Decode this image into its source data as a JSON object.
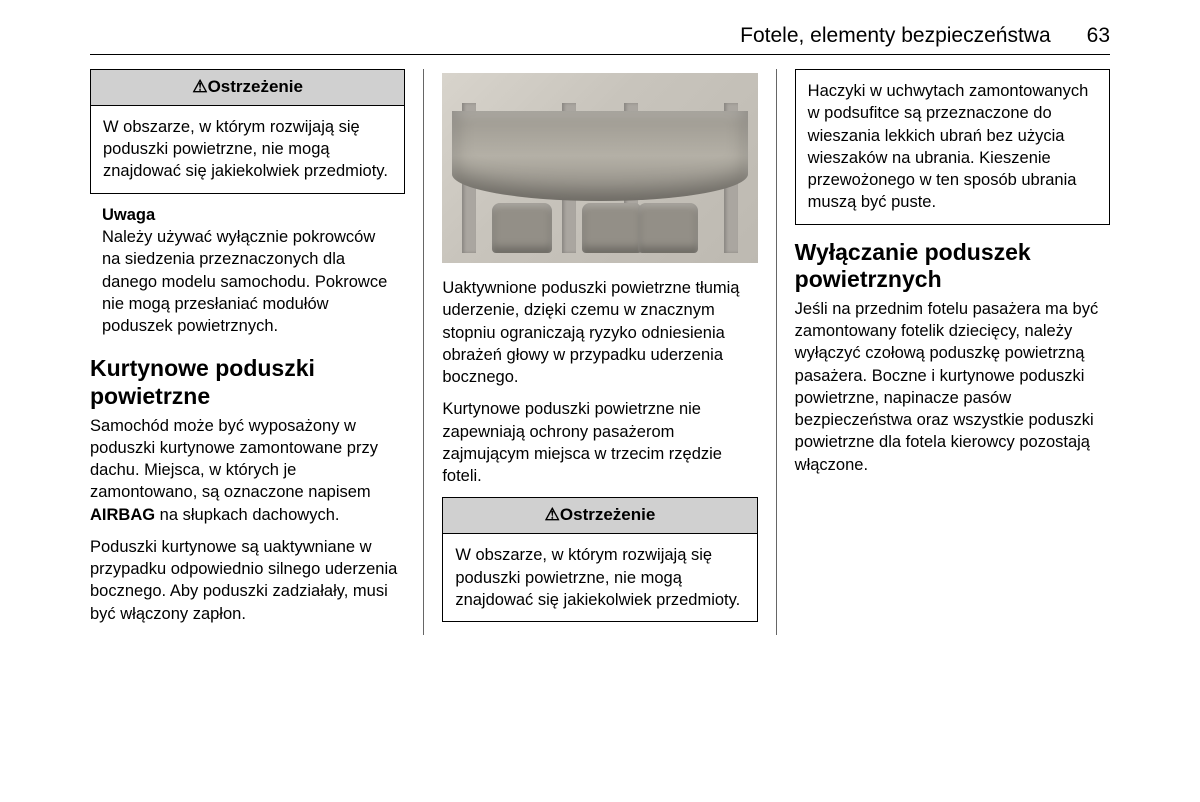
{
  "header": {
    "chapter": "Fotele, elementy bezpieczeństwa",
    "page": "63"
  },
  "col1": {
    "warning": {
      "label": "Ostrzeżenie",
      "icon": "⚠",
      "body": "W obszarze, w którym rozwijają się poduszki powietrzne, nie mogą znajdować się jakiekolwiek przedmioty."
    },
    "note": {
      "label": "Uwaga",
      "body": "Należy używać wyłącznie pokrowców na siedzenia przeznaczonych dla danego modelu samochodu. Pokrowce nie mogą przesłaniać modułów poduszek powietrznych."
    },
    "section_title": "Kurtynowe poduszki powietrzne",
    "p1_a": "Samochód może być wyposażony w poduszki kurtynowe zamontowane przy dachu. Miejsca, w których je zamontowano, są oznaczone napisem ",
    "p1_strong": "AIRBAG",
    "p1_b": " na słupkach dachowych.",
    "p2": "Poduszki kurtynowe są uaktywniane w przypadku odpowiednio silnego uderzenia bocznego. Aby poduszki zadziałały, musi być włączony zapłon."
  },
  "col2": {
    "illustration_alt": "curtain-airbag-diagram",
    "p1": "Uaktywnione poduszki powietrzne tłumią uderzenie, dzięki czemu w znacznym stopniu ograniczają ryzyko odniesienia obrażeń głowy w przypadku uderzenia bocznego.",
    "p2": "Kurtynowe poduszki powietrzne nie zapewniają ochrony pasażerom zajmującym miejsca w trzecim rzędzie foteli.",
    "warning": {
      "label": "Ostrzeżenie",
      "icon": "⚠",
      "body": "W obszarze, w którym rozwijają się poduszki powietrzne, nie mogą znajdować się jakiekolwiek przedmioty."
    }
  },
  "col3": {
    "hanger_box": "Haczyki w uchwytach zamontowanych w podsufitce są przeznaczone do wieszania lekkich ubrań bez użycia wieszaków na ubrania. Kieszenie przewożonego w ten sposób ubrania muszą być puste.",
    "section_title": "Wyłączanie poduszek powietrznych",
    "p1": "Jeśli na przednim fotelu pasażera ma być zamontowany fotelik dziecięcy, należy wyłączyć czołową poduszkę powietrzną pasażera. Boczne i kurtynowe poduszki powietrzne, napinacze pasów bezpieczeństwa oraz wszystkie poduszki powietrzne dla fotela kierowcy pozostają włączone."
  }
}
